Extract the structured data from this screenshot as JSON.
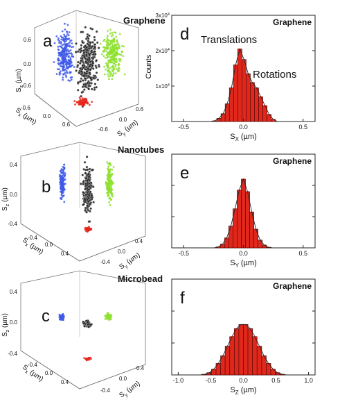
{
  "figure": {
    "colors": {
      "blue": "#3f5ae8",
      "black": "#1a1a1a",
      "green": "#8ee02f",
      "red": "#e8261c",
      "bar": "#e0271c",
      "bar_edge": "#5a0a08",
      "box": "#777777"
    }
  },
  "scatter_panels": [
    {
      "panel_letter": "a",
      "title": "Graphene",
      "axes": {
        "zlabel": "S_z (µm)",
        "xlabel": "S_x (µm)",
        "ylabel": "S_y (µm)",
        "z_ticks": [
          "0.6",
          "0.0",
          "-0.6"
        ],
        "x_ticks": [
          "-0.6",
          "0.0",
          "0.6"
        ],
        "y_ticks": [
          "-0.6",
          "0.0",
          "0.6"
        ]
      },
      "clouds": [
        {
          "name": "blue projection",
          "color": "blue",
          "shape": "tall"
        },
        {
          "name": "black 3D",
          "color": "black",
          "shape": "tall"
        },
        {
          "name": "green projection",
          "color": "green",
          "shape": "tall"
        },
        {
          "name": "red projection",
          "color": "red",
          "shape": "flat"
        }
      ]
    },
    {
      "panel_letter": "b",
      "title": "Nanotubes",
      "axes": {
        "zlabel": "S_z (µm)",
        "xlabel": "S_x (µm)",
        "ylabel": "S_y (µm)",
        "z_ticks": [
          "0.4",
          "0.0",
          "-0.4"
        ],
        "x_ticks": [
          "-0.4",
          "0.0",
          "0.4"
        ],
        "y_ticks": [
          "-0.4",
          "0.0",
          "0.4"
        ]
      },
      "clouds": [
        {
          "name": "blue projection",
          "color": "blue",
          "shape": "narrow"
        },
        {
          "name": "black 3D",
          "color": "black",
          "shape": "narrow"
        },
        {
          "name": "green projection",
          "color": "green",
          "shape": "narrow"
        },
        {
          "name": "red projection",
          "color": "red",
          "shape": "dot"
        }
      ]
    },
    {
      "panel_letter": "c",
      "title": "Microbead",
      "axes": {
        "zlabel": "S_z (µm)",
        "xlabel": "S_x (µm)",
        "ylabel": "S_y (µm)",
        "z_ticks": [
          "0.4",
          "0.0",
          "-0.4"
        ],
        "x_ticks": [
          "-0.4",
          "0.0",
          "0.4"
        ],
        "y_ticks": [
          "-0.4",
          "0.0",
          "0.4"
        ]
      },
      "clouds": [
        {
          "name": "blue projection",
          "color": "blue",
          "shape": "small"
        },
        {
          "name": "black 3D",
          "color": "black",
          "shape": "small"
        },
        {
          "name": "green projection",
          "color": "green",
          "shape": "small"
        },
        {
          "name": "red projection",
          "color": "red",
          "shape": "dot"
        }
      ]
    }
  ],
  "chart_data": [
    {
      "type": "bar",
      "panel_letter": "d",
      "title": "Graphene",
      "xlabel": "S_X (µm)",
      "ylabel": "Counts",
      "xlim": [
        -0.6,
        0.6
      ],
      "ylim": [
        0,
        30000
      ],
      "x_ticks": [
        -0.5,
        0.0,
        0.5
      ],
      "x_tick_labels": [
        "-0.5",
        "0.0",
        "0.5"
      ],
      "y_ticks": [
        10000,
        20000,
        30000
      ],
      "y_tick_labels": [
        "1x10^4",
        "2x10^4",
        "3x10^4"
      ],
      "annotations": [
        "Translations",
        "Rotations"
      ],
      "bin_width": 0.035,
      "bin_centers": [
        -0.24,
        -0.205,
        -0.17,
        -0.135,
        -0.1,
        -0.065,
        -0.03,
        0.005,
        0.04,
        0.075,
        0.11,
        0.145,
        0.18,
        0.215,
        0.25
      ],
      "values": [
        200,
        900,
        2200,
        5000,
        9500,
        16000,
        20500,
        17500,
        13500,
        11000,
        9500,
        7000,
        4500,
        2000,
        600
      ]
    },
    {
      "type": "bar",
      "panel_letter": "e",
      "title": "Graphene",
      "xlabel": "S_Y (µm)",
      "ylabel": "",
      "xlim": [
        -0.6,
        0.6
      ],
      "ylim": [
        0,
        30000
      ],
      "x_ticks": [
        -0.5,
        0.0,
        0.5
      ],
      "x_tick_labels": [
        "-0.5",
        "0.0",
        "0.5"
      ],
      "y_ticks": [
        10000,
        20000,
        30000
      ],
      "y_tick_labels": [],
      "annotations": [],
      "bin_width": 0.035,
      "bin_centers": [
        -0.21,
        -0.175,
        -0.14,
        -0.105,
        -0.07,
        -0.035,
        0.0,
        0.035,
        0.07,
        0.105,
        0.14,
        0.175,
        0.21
      ],
      "values": [
        300,
        1200,
        3200,
        7000,
        12500,
        18500,
        22000,
        18000,
        11500,
        6000,
        2500,
        900,
        200
      ]
    },
    {
      "type": "bar",
      "panel_letter": "f",
      "title": "Graphene",
      "xlabel": "S_Z (µm)",
      "ylabel": "",
      "xlim": [
        -1.1,
        1.1
      ],
      "ylim": [
        0,
        30000
      ],
      "x_ticks": [
        -1.0,
        -0.5,
        0.0,
        0.5,
        1.0
      ],
      "x_tick_labels": [
        "-1.0",
        "-0.5",
        "0.0",
        "0.5",
        "1.0"
      ],
      "y_ticks": [
        10000,
        20000,
        30000
      ],
      "y_tick_labels": [],
      "annotations": [],
      "bin_width": 0.07,
      "bin_centers": [
        -0.595,
        -0.525,
        -0.455,
        -0.385,
        -0.315,
        -0.245,
        -0.175,
        -0.105,
        -0.035,
        0.035,
        0.105,
        0.175,
        0.245,
        0.315,
        0.385,
        0.455,
        0.525,
        0.595
      ],
      "values": [
        200,
        700,
        1800,
        3600,
        6000,
        9000,
        12000,
        14500,
        15800,
        15800,
        14500,
        12000,
        9000,
        6000,
        3600,
        1800,
        700,
        200
      ]
    }
  ]
}
